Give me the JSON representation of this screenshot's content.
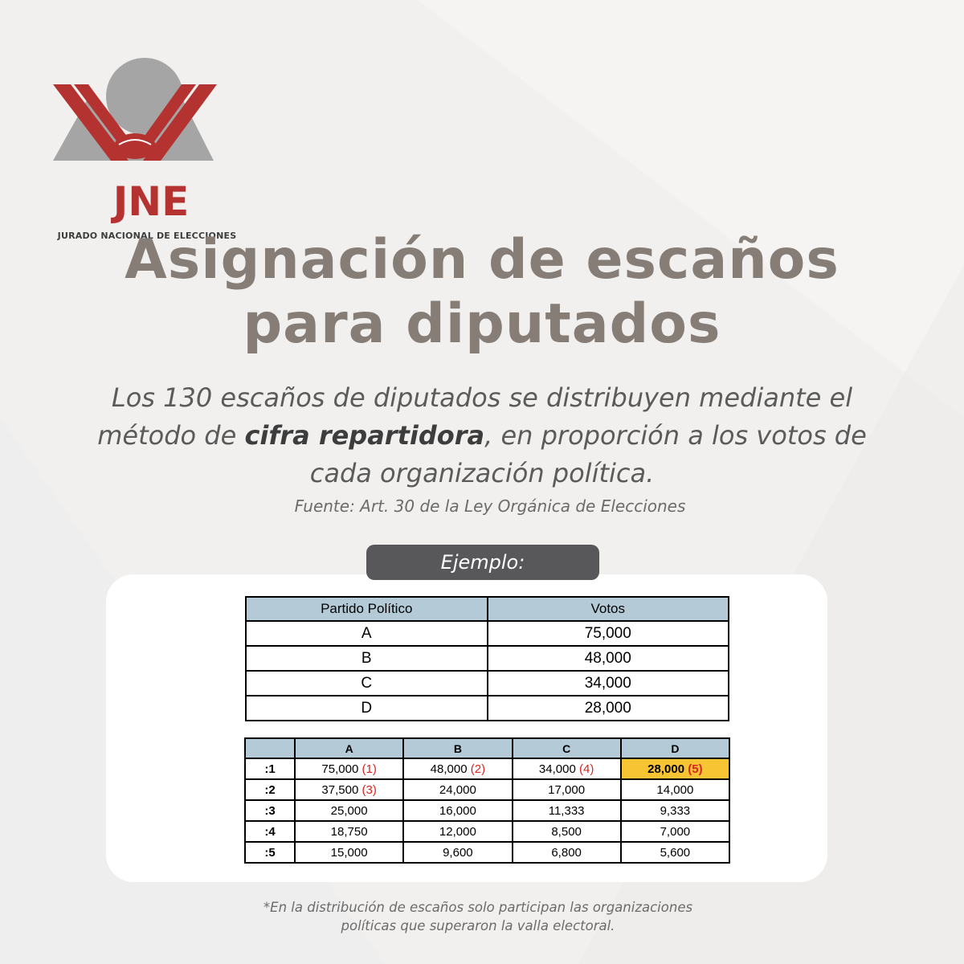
{
  "logo": {
    "acronym": "JNE",
    "full_name": "JURADO NACIONAL DE ELECCIONES",
    "colors": {
      "red": "#b4322f",
      "gray": "#a5a5a5"
    }
  },
  "title_line1": "Asignación de escaños",
  "title_line2": "para diputados",
  "description": {
    "before": "Los 130 escaños de diputados se distribuyen mediante el método de ",
    "emphasis": "cifra repartidora",
    "after": ", en proporción a los votos de cada organización política."
  },
  "source": "Fuente: Art. 30 de la Ley Orgánica de Elecciones",
  "example_label": "Ejemplo:",
  "votes_table": {
    "headers": [
      "Partido Político",
      "Votos"
    ],
    "rows": [
      [
        "A",
        "75,000"
      ],
      [
        "B",
        "48,000"
      ],
      [
        "C",
        "34,000"
      ],
      [
        "D",
        "28,000"
      ]
    ]
  },
  "divisor_table": {
    "headers": [
      "",
      "A",
      "B",
      "C",
      "D"
    ],
    "rows": [
      {
        "label": ":1",
        "cells": [
          {
            "value": "75,000",
            "rank": "(1)"
          },
          {
            "value": "48,000",
            "rank": "(2)"
          },
          {
            "value": "34,000",
            "rank": "(4)"
          },
          {
            "value": "28,000",
            "rank": "(5)",
            "highlight": true
          }
        ]
      },
      {
        "label": ":2",
        "cells": [
          {
            "value": "37,500",
            "rank": "(3)"
          },
          {
            "value": "24,000"
          },
          {
            "value": "17,000"
          },
          {
            "value": "14,000"
          }
        ]
      },
      {
        "label": ":3",
        "cells": [
          {
            "value": "25,000"
          },
          {
            "value": "16,000"
          },
          {
            "value": "11,333"
          },
          {
            "value": "9,333"
          }
        ]
      },
      {
        "label": ":4",
        "cells": [
          {
            "value": "18,750"
          },
          {
            "value": "12,000"
          },
          {
            "value": "8,500"
          },
          {
            "value": "7,000"
          }
        ]
      },
      {
        "label": ":5",
        "cells": [
          {
            "value": "15,000"
          },
          {
            "value": "9,600"
          },
          {
            "value": "6,800"
          },
          {
            "value": "5,600"
          }
        ]
      }
    ],
    "colors": {
      "header": "#b4cad7",
      "highlight": "#f7c533",
      "rank": "#d6261f"
    }
  },
  "footnote_line1": "*En la distribución de escaños solo participan las organizaciones",
  "footnote_line2": "políticas que superaron la valla electoral."
}
